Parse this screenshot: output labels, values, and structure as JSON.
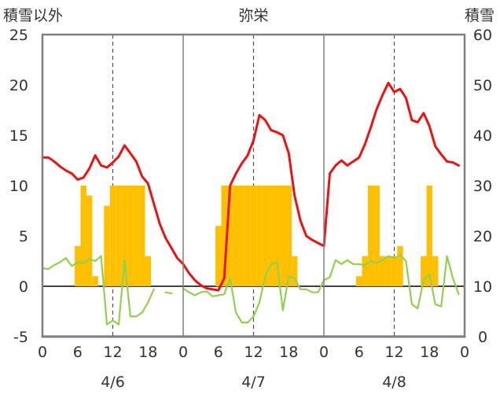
{
  "chart_data": {
    "type": "bar",
    "title": "弥栄",
    "left_axis_title": "積雪以外",
    "right_axis_title": "積雪",
    "ylim_left": [
      -5,
      25
    ],
    "yticks_left": [
      "-5",
      "0",
      "5",
      "10",
      "15",
      "20",
      "25"
    ],
    "ylim_right": [
      0,
      60
    ],
    "yticks_right": [
      "0",
      "10",
      "20",
      "30",
      "40",
      "50",
      "60"
    ],
    "xlim_hours": [
      0,
      72
    ],
    "xtick_labels": [
      "0",
      "6",
      "12",
      "18",
      "0",
      "6",
      "12",
      "18",
      "0",
      "6",
      "12",
      "18",
      "0"
    ],
    "day_labels": [
      "4/6",
      "4/7",
      "4/8"
    ],
    "grid": "dashed vertical at noon",
    "colors": {
      "temperature": "#ee1111",
      "precipitation": "#ffc000",
      "wind": "#92d050",
      "snow_depth": "#7030a0",
      "frame": "#808080"
    },
    "series": [
      {
        "type": "bar",
        "axis": "left",
        "x": [
          6,
          7,
          8,
          9,
          11,
          12,
          13,
          14,
          15,
          16,
          17,
          18,
          30,
          31,
          32,
          33,
          34,
          35,
          36,
          37,
          38,
          39,
          40,
          41,
          42,
          43,
          54,
          55,
          56,
          57,
          58,
          59,
          60,
          61,
          65,
          66,
          67
        ],
        "values": [
          4,
          10,
          9,
          1,
          8,
          10,
          10,
          10,
          10,
          10,
          10,
          3,
          6,
          10,
          10,
          10,
          10,
          10,
          10,
          10,
          10,
          10,
          10,
          10,
          10,
          3,
          1,
          3,
          10,
          10,
          3,
          3,
          3,
          4,
          3,
          10,
          3
        ]
      },
      {
        "type": "line",
        "axis": "left",
        "x": [
          0,
          1,
          2,
          3,
          4,
          5,
          6,
          7,
          8,
          9,
          10,
          11,
          12,
          13,
          14,
          15,
          16,
          17,
          18,
          19,
          20,
          21,
          22,
          23,
          24,
          25,
          26,
          27,
          28,
          29,
          30,
          31,
          32,
          33,
          34,
          35,
          36,
          37,
          38,
          39,
          40,
          41,
          42,
          43,
          44,
          45,
          46,
          47,
          48,
          49,
          50,
          51,
          52,
          53,
          54,
          55,
          56,
          57,
          58,
          59,
          60,
          61,
          62,
          63,
          64,
          65,
          66,
          67,
          68,
          69,
          70,
          71
        ],
        "values": [
          12.8,
          12.8,
          12.4,
          11.9,
          11.5,
          11.2,
          10.6,
          10.8,
          11.7,
          13.0,
          12.0,
          11.8,
          12.3,
          12.9,
          14.0,
          13.2,
          12.4,
          10.9,
          10.2,
          8.2,
          6.2,
          4.8,
          3.8,
          2.8,
          2.2,
          1.3,
          0.6,
          0.1,
          -0.2,
          -0.3,
          -0.4,
          0.8,
          10.0,
          11.2,
          12.2,
          13.0,
          14.5,
          17.0,
          16.5,
          15.5,
          15.3,
          15.0,
          13.2,
          9.0,
          6.5,
          5.0,
          4.6,
          4.3,
          4.0,
          11.2,
          12.0,
          12.5,
          12.0,
          12.4,
          12.8,
          14.1,
          15.8,
          17.6,
          19.0,
          20.2,
          19.3,
          19.6,
          18.7,
          16.5,
          16.3,
          17.2,
          15.9,
          13.9,
          13.1,
          12.4,
          12.3,
          12.0
        ]
      },
      {
        "type": "line",
        "axis": "left",
        "x": [
          0,
          1,
          2,
          3,
          4,
          5,
          6,
          7,
          8,
          9,
          10,
          11,
          12,
          13,
          14,
          15,
          16,
          17,
          18,
          19,
          20,
          21,
          22,
          23,
          24,
          25,
          26,
          27,
          28,
          29,
          30,
          31,
          32,
          33,
          34,
          35,
          36,
          37,
          38,
          39,
          40,
          41,
          42,
          43,
          44,
          45,
          46,
          47,
          48,
          49,
          50,
          51,
          52,
          53,
          54,
          55,
          56,
          57,
          58,
          59,
          60,
          61,
          62,
          63,
          64,
          65,
          66,
          67,
          68,
          69,
          70,
          71
        ],
        "values": [
          1.8,
          1.7,
          2.1,
          2.4,
          2.8,
          2.0,
          2.4,
          2.3,
          2.7,
          2.5,
          3.0,
          -3.8,
          -3.4,
          -3.8,
          2.6,
          -3.0,
          -3.0,
          -2.6,
          -1.6,
          -0.3,
          null,
          -0.6,
          -0.7,
          null,
          -0.2,
          -0.6,
          -0.9,
          -0.6,
          -0.5,
          -1.0,
          -0.9,
          -0.8,
          0.8,
          -2.6,
          -3.6,
          -3.6,
          -3.0,
          -1.6,
          1.0,
          2.2,
          2.4,
          -2.4,
          1.0,
          0.8,
          -0.3,
          -0.3,
          -0.6,
          -0.6,
          0.6,
          0.9,
          2.6,
          2.2,
          2.6,
          2.2,
          2.2,
          2.1,
          2.5,
          2.3,
          2.6,
          3.0,
          2.8,
          3.1,
          2.5,
          -1.8,
          -2.2,
          0.6,
          1.2,
          -1.8,
          -2.0,
          3.0,
          0.8,
          -0.8
        ]
      },
      {
        "type": "line",
        "axis": "right",
        "x": [
          0,
          72
        ],
        "values": [
          0,
          0
        ]
      }
    ]
  }
}
